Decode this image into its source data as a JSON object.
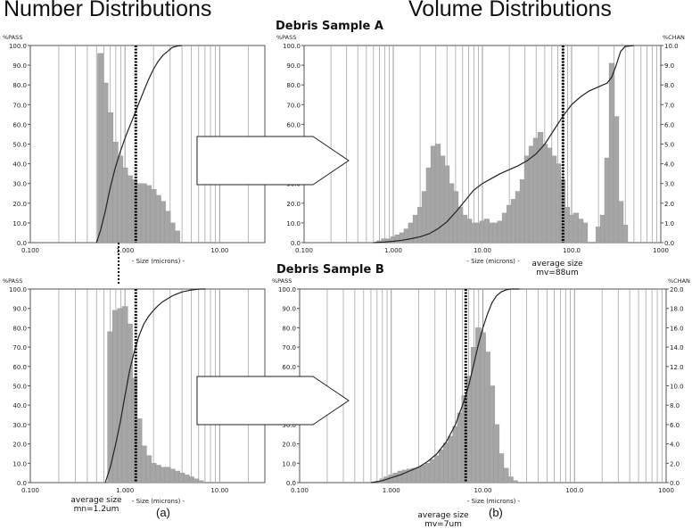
{
  "headings": {
    "left": "Number Distributions",
    "right": "Volume Distributions",
    "sample_a": "Debris Sample A",
    "sample_b": "Debris Sample B"
  },
  "annotations": {
    "a_vol_line1": "average size",
    "a_vol_line2": "mv=88um",
    "b_num_line1": "average size",
    "b_num_line2": "mn=1.2um",
    "b_vol_line1": "average size",
    "b_vol_line2": "mv=7um",
    "letter_a": "(a)",
    "letter_b": "(b)"
  },
  "colors": {
    "bar": "#a6a6a6",
    "curve": "#222222",
    "grid": "#9a9a9a",
    "marker": "#000000"
  },
  "chart_data": [
    {
      "id": "A-number",
      "type": "bar",
      "xscale": "log",
      "xlim": [
        0.1,
        30
      ],
      "xticks": [
        "0.100",
        "1.000",
        "10.00"
      ],
      "xlabel": "- Size (microns) -",
      "ylabel_left": "%PASS",
      "ylim": [
        0,
        100
      ],
      "yticks": [
        "0.0",
        "10.0",
        "20.0",
        "30.0",
        "40.0",
        "50.0",
        "60.0",
        "70.0",
        "80.0",
        "90.0",
        "100.0"
      ],
      "bars": {
        "x": [
          0.55,
          0.62,
          0.7,
          0.79,
          0.89,
          1.0,
          1.12,
          1.26,
          1.41,
          1.58,
          1.78,
          2.0,
          2.24,
          2.51,
          2.82,
          3.16,
          3.55
        ],
        "y": [
          96,
          81,
          66,
          51,
          44,
          38,
          34,
          32,
          30,
          30,
          29,
          27,
          24,
          21,
          16,
          10,
          6
        ]
      },
      "curve": {
        "x": [
          0.5,
          0.55,
          0.62,
          0.7,
          0.79,
          0.89,
          1.0,
          1.12,
          1.26,
          1.41,
          1.58,
          1.78,
          2.0,
          2.24,
          2.51,
          2.82,
          3.16,
          3.55,
          4.0
        ],
        "y": [
          0,
          6,
          16,
          28,
          38,
          46,
          53,
          59,
          65,
          71,
          77,
          83,
          88,
          92,
          95,
          97,
          99,
          99.7,
          100
        ]
      },
      "marker_x": 1.3
    },
    {
      "id": "A-volume",
      "type": "bar",
      "xscale": "log",
      "xlim": [
        0.1,
        1000
      ],
      "xticks": [
        "0.100",
        "1.000",
        "10.00",
        "100.0",
        "1000"
      ],
      "xlabel": "- Size (microns) -",
      "ylabel_left": "%PASS",
      "ylabel_right": "%CHAN",
      "ylim": [
        0,
        100
      ],
      "yticks": [
        "0.0",
        "10.0",
        "20.0",
        "30.0",
        "40.0",
        "50.0",
        "60.0",
        "70.0",
        "80.0",
        "90.0",
        "100.0"
      ],
      "ylim_right": [
        0,
        10
      ],
      "yticks_right": [
        "0.0",
        "1.0",
        "2.0",
        "3.0",
        "4.0",
        "5.0",
        "6.0",
        "7.0",
        "8.0",
        "9.0",
        "10.0"
      ],
      "bars": {
        "x": [
          0.7,
          0.79,
          0.89,
          1.0,
          1.12,
          1.26,
          1.41,
          1.58,
          1.78,
          2.0,
          2.24,
          2.51,
          2.82,
          3.16,
          3.55,
          3.98,
          4.47,
          5.01,
          5.62,
          6.31,
          7.08,
          7.94,
          8.91,
          10.0,
          11.2,
          12.6,
          14.1,
          15.8,
          17.8,
          20.0,
          22.4,
          25.1,
          28.2,
          31.6,
          35.5,
          39.8,
          44.7,
          50.1,
          56.2,
          63.1,
          70.8,
          79.4,
          89.1,
          100,
          112,
          126,
          141,
          200,
          224,
          251,
          282,
          316,
          355,
          398
        ],
        "y": [
          0.1,
          0.2,
          0.2,
          0.3,
          0.4,
          0.5,
          0.7,
          1.0,
          1.4,
          1.8,
          2.6,
          3.8,
          4.9,
          5.0,
          4.4,
          3.9,
          3.0,
          2.6,
          1.8,
          1.4,
          1.2,
          1.0,
          1.0,
          1.1,
          1.2,
          1.0,
          1.0,
          1.1,
          1.5,
          1.9,
          2.2,
          2.6,
          3.2,
          4.4,
          4.9,
          5.3,
          5.6,
          5.0,
          4.8,
          4.4,
          4.0,
          3.2,
          1.8,
          1.4,
          1.5,
          1.2,
          1.0,
          0.8,
          1.4,
          4.3,
          9.1,
          6.4,
          2.1,
          0.9
        ]
      },
      "curve": {
        "x": [
          0.6,
          0.8,
          1.0,
          1.26,
          1.58,
          2.0,
          2.51,
          3.16,
          3.98,
          5.01,
          6.31,
          7.94,
          10.0,
          12.6,
          15.8,
          20.0,
          25.1,
          31.6,
          39.8,
          50.1,
          63.1,
          79.4,
          100,
          126,
          158,
          200,
          251,
          282,
          316,
          355,
          398,
          501
        ],
        "y": [
          0,
          0.3,
          0.7,
          1.2,
          2,
          3,
          4.5,
          7,
          10.5,
          15.5,
          21,
          26.5,
          30,
          32.5,
          35,
          37,
          39,
          41.5,
          45,
          50,
          57,
          64,
          70,
          74,
          77,
          79,
          81,
          84,
          90,
          97,
          99.5,
          100
        ]
      },
      "marker_x": 80
    },
    {
      "id": "B-number",
      "type": "bar",
      "xscale": "log",
      "xlim": [
        0.1,
        30
      ],
      "xticks": [
        "0.100",
        "1.000",
        "10.00"
      ],
      "xlabel": "- Size (microns) -",
      "ylabel_left": "%PASS",
      "ylim": [
        0,
        100
      ],
      "yticks": [
        "0.0",
        "10.0",
        "20.0",
        "30.0",
        "40.0",
        "50.0",
        "60.0",
        "70.0",
        "80.0",
        "90.0",
        "100.0"
      ],
      "bars": {
        "x": [
          0.7,
          0.79,
          0.89,
          1.0,
          1.12,
          1.26,
          1.41,
          1.58,
          1.78,
          2.0,
          2.24,
          2.51,
          2.82,
          3.16,
          3.55,
          3.98,
          4.47,
          5.01,
          5.62,
          6.31
        ],
        "y": [
          78,
          89,
          90,
          91,
          82,
          54,
          33,
          19,
          14,
          10,
          9,
          8,
          8,
          7,
          6,
          5,
          4,
          3,
          2,
          1
        ]
      },
      "curve": {
        "x": [
          0.62,
          0.7,
          0.79,
          0.89,
          1.0,
          1.12,
          1.26,
          1.41,
          1.58,
          1.78,
          2.0,
          2.24,
          2.51,
          2.82,
          3.16,
          3.55,
          3.98,
          4.47,
          5.01,
          5.62,
          6.31,
          7.08
        ],
        "y": [
          0,
          8,
          19,
          31,
          45,
          58,
          68,
          76,
          82,
          86,
          89,
          91.5,
          93.5,
          95,
          96.5,
          97.5,
          98.5,
          99,
          99.5,
          99.8,
          100,
          100
        ]
      },
      "marker_x": 1.3
    },
    {
      "id": "B-volume",
      "type": "bar",
      "xscale": "log",
      "xlim": [
        0.1,
        1000
      ],
      "xticks": [
        "0.100",
        "1.000",
        "10.00",
        "100.0",
        "1000"
      ],
      "xlabel": "- Size (microns) -",
      "ylabel_left": "%PASS",
      "ylabel_right": "%CHAN",
      "ylim": [
        0,
        100
      ],
      "yticks": [
        "0.0",
        "10.0",
        "20.0",
        "30.0",
        "40.0",
        "50.0",
        "60.0",
        "70.0",
        "80.0",
        "90.0",
        "100.0"
      ],
      "ylim_right": [
        0,
        20
      ],
      "yticks_right": [
        "0.0",
        "2.0",
        "4.0",
        "6.0",
        "8.0",
        "10.0",
        "12.0",
        "14.0",
        "16.0",
        "18.0",
        "20.0"
      ],
      "bars": {
        "x": [
          0.8,
          0.89,
          1.0,
          1.12,
          1.26,
          1.41,
          1.58,
          1.78,
          2.0,
          2.24,
          2.51,
          2.82,
          3.16,
          3.55,
          3.98,
          4.47,
          5.01,
          5.62,
          6.31,
          7.08,
          7.94,
          8.91,
          10.0,
          11.2,
          12.6,
          14.1,
          15.8,
          17.8,
          20.0,
          22.4
        ],
        "y": [
          0.4,
          0.6,
          0.8,
          1.0,
          1.2,
          1.3,
          1.4,
          1.5,
          1.6,
          1.8,
          2.0,
          2.4,
          2.8,
          3.4,
          4.1,
          4.8,
          5.8,
          7.2,
          9.0,
          11.0,
          14.0,
          16.0,
          15.5,
          13.5,
          10.0,
          6.0,
          3.0,
          1.5,
          0.6,
          0.2
        ]
      },
      "curve": {
        "x": [
          0.6,
          0.8,
          1.0,
          1.26,
          1.58,
          2.0,
          2.51,
          3.16,
          3.98,
          5.01,
          6.31,
          7.08,
          7.94,
          8.91,
          10.0,
          11.2,
          12.6,
          14.1,
          15.8,
          17.8,
          20.0,
          25.1
        ],
        "y": [
          0,
          1,
          2.5,
          4,
          6,
          8,
          11,
          15,
          21,
          30,
          43,
          51,
          61,
          71,
          80,
          87,
          93,
          96.5,
          98.5,
          99.5,
          100,
          100
        ]
      },
      "marker_x": 6.5
    }
  ]
}
